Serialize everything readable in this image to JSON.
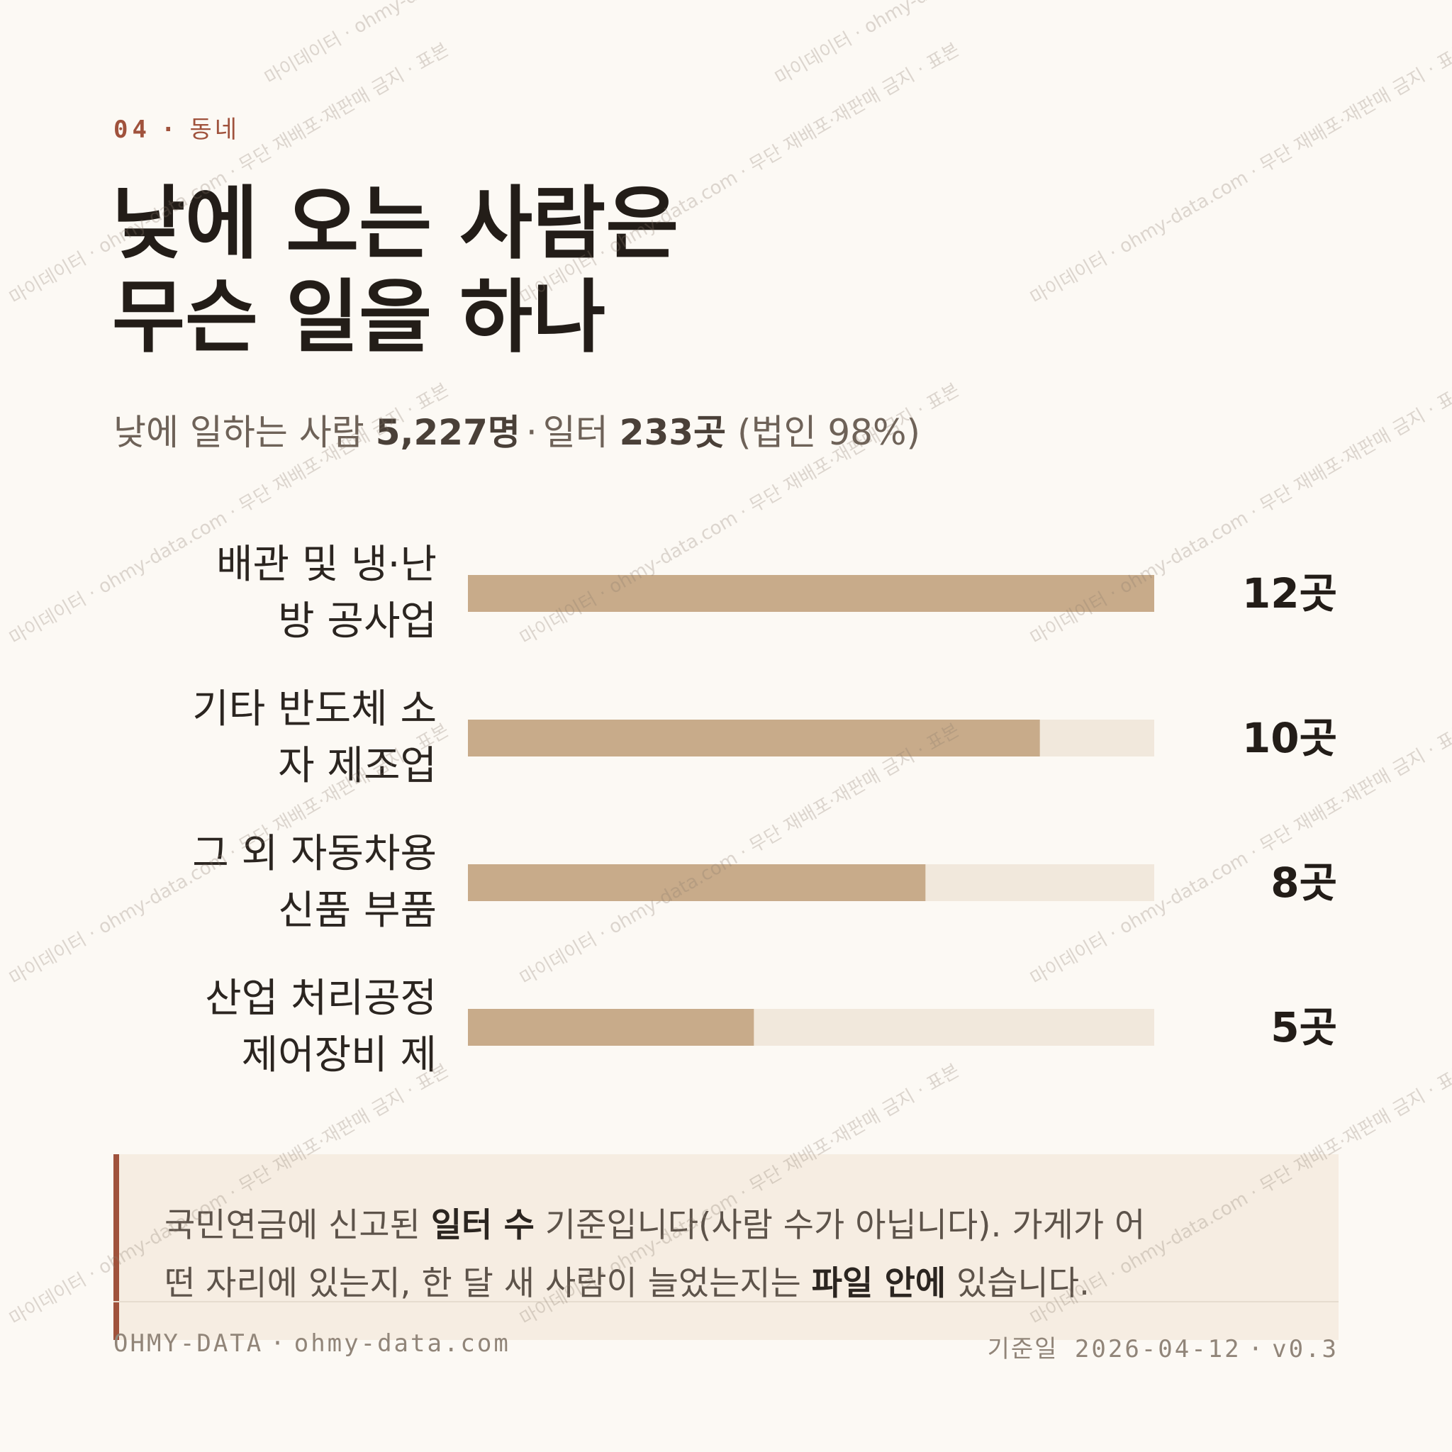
{
  "header": {
    "section_number": "04",
    "section_name": "동네"
  },
  "title": {
    "line1": "낮에 오는 사람은",
    "line2": "무슨 일을 하나"
  },
  "subtitle": {
    "workers_label": "낮에 일하는 사람",
    "workers_value": "5,227명",
    "workplaces_label": "일터",
    "workplaces_value": "233곳",
    "corporate_share": "(법인 98%)"
  },
  "chart_data": {
    "type": "bar",
    "orientation": "horizontal",
    "categories": [
      [
        "배관 및 냉·난",
        "방 공사업"
      ],
      [
        "기타 반도체 소",
        "자 제조업"
      ],
      [
        "그 외 자동차용",
        "신품 부품"
      ],
      [
        "산업 처리공정",
        "제어장비 제"
      ]
    ],
    "values": [
      12,
      10,
      8,
      5
    ],
    "value_labels": [
      "12곳",
      "10곳",
      "8곳",
      "5곳"
    ],
    "xlim": [
      0,
      12
    ],
    "grid": false,
    "legend": "none"
  },
  "note": {
    "part1": "국민연금에 신고된 ",
    "bold1": "일터 수",
    "part2": " 기준입니다(사람 수가 아닙니다). 가게가 어",
    "part3": "떤 자리에 있는지, 한 달 새 사람이 늘었는지는 ",
    "bold2": "파일 안에",
    "part4": " 있습니다."
  },
  "footer": {
    "brand": "OHMY-DATA",
    "site": "ohmy-data.com",
    "date_label": "기준일",
    "date": "2026-04-12",
    "version": "v0.3"
  },
  "watermark": {
    "text": "마이데이터 · ohmy-data.com · 무단 재배포·재판매 금지 · 표본"
  },
  "colors": {
    "background": "#fcf9f4",
    "accent": "#a0523c",
    "bar_fill": "#c8ab8a",
    "bar_track": "#f1e8dc",
    "callout_bg": "#f6ede2"
  }
}
